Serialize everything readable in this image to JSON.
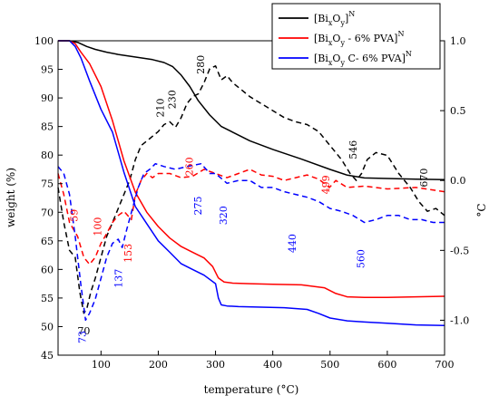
{
  "chart_data": {
    "type": "line",
    "xlabel": "temperature (°C)",
    "ylabel": "weight (%)",
    "y2label": "°C",
    "xlim": [
      25,
      700
    ],
    "ylim": [
      45,
      100
    ],
    "y2lim": [
      -1.25,
      1.0
    ],
    "xticks": [
      100,
      200,
      300,
      400,
      500,
      600,
      700
    ],
    "yticks": [
      45,
      50,
      55,
      60,
      65,
      70,
      75,
      80,
      85,
      90,
      95,
      100
    ],
    "y2ticks": [
      -1.0,
      -0.5,
      0.0,
      0.5,
      1.0
    ],
    "x_tick_labels": [
      "100",
      "200",
      "300",
      "400",
      "500",
      "600",
      "700"
    ],
    "y_tick_labels": [
      "45",
      "50",
      "55",
      "60",
      "65",
      "70",
      "75",
      "80",
      "85",
      "90",
      "95",
      "100"
    ],
    "y2_tick_labels": [
      "-1.0",
      "-0.5",
      "0.0",
      "0.5",
      "1.0"
    ],
    "legend_position": "top-right",
    "legend": [
      {
        "id": "s1",
        "base": "[Bi",
        "sub1": "x",
        "mid": "O",
        "sub2": "y",
        "suffix": "]",
        "sup": "N",
        "color": "#000000"
      },
      {
        "id": "s2",
        "base": "[Bi",
        "sub1": "x",
        "mid": "O",
        "sub2": "y",
        "suffix": " - 6% PVA]",
        "sup": "N",
        "color": "#ff0000"
      },
      {
        "id": "s3",
        "base": "[Bi",
        "sub1": "x",
        "mid": "O",
        "sub2": "y",
        "suffix": " C- 6% PVA]",
        "sup": "N",
        "color": "#0000ff"
      }
    ],
    "series": [
      {
        "id": "s1-tg",
        "axis": "left",
        "style": "solid",
        "color": "#000000",
        "x": [
          25,
          45,
          60,
          75,
          90,
          110,
          130,
          150,
          170,
          190,
          210,
          225,
          240,
          255,
          270,
          290,
          310,
          330,
          360,
          400,
          450,
          500,
          530,
          560,
          600,
          650,
          700
        ],
        "y": [
          100,
          100,
          99.7,
          99.0,
          98.5,
          98.0,
          97.6,
          97.3,
          97.0,
          96.7,
          96.2,
          95.5,
          94.0,
          92.0,
          89.5,
          87.0,
          85.0,
          84.0,
          82.5,
          81.0,
          79.3,
          77.5,
          76.5,
          76.0,
          75.9,
          75.8,
          75.7
        ]
      },
      {
        "id": "s1-dta",
        "axis": "right",
        "style": "dashed",
        "color": "#000000",
        "x": [
          25,
          35,
          45,
          55,
          63,
          70,
          75,
          82,
          90,
          100,
          110,
          120,
          130,
          140,
          150,
          160,
          170,
          185,
          200,
          210,
          220,
          230,
          240,
          250,
          260,
          270,
          280,
          290,
          300,
          310,
          320,
          330,
          345,
          360,
          380,
          400,
          420,
          440,
          460,
          480,
          500,
          520,
          535,
          546,
          555,
          565,
          580,
          600,
          620,
          640,
          655,
          670,
          685,
          700
        ],
        "y": [
          -0.05,
          -0.3,
          -0.5,
          -0.55,
          -0.8,
          -0.95,
          -0.92,
          -0.8,
          -0.7,
          -0.55,
          -0.4,
          -0.3,
          -0.2,
          -0.1,
          0.0,
          0.15,
          0.25,
          0.3,
          0.35,
          0.4,
          0.42,
          0.38,
          0.45,
          0.55,
          0.6,
          0.62,
          0.7,
          0.8,
          0.82,
          0.72,
          0.75,
          0.7,
          0.65,
          0.6,
          0.55,
          0.5,
          0.45,
          0.42,
          0.4,
          0.35,
          0.25,
          0.15,
          0.05,
          0.0,
          0.05,
          0.15,
          0.2,
          0.18,
          0.05,
          -0.05,
          -0.15,
          -0.22,
          -0.2,
          -0.25
        ]
      },
      {
        "id": "s2-tg",
        "axis": "left",
        "style": "solid",
        "color": "#ff0000",
        "x": [
          25,
          45,
          55,
          65,
          80,
          100,
          120,
          140,
          160,
          180,
          200,
          220,
          240,
          260,
          280,
          295,
          305,
          315,
          330,
          360,
          400,
          450,
          490,
          510,
          530,
          560,
          600,
          650,
          700
        ],
        "y": [
          100,
          100,
          99.5,
          98.0,
          96.0,
          92.0,
          86.0,
          79.0,
          73.5,
          70.0,
          67.5,
          65.5,
          64.0,
          63.0,
          62.0,
          60.5,
          58.5,
          57.8,
          57.6,
          57.5,
          57.4,
          57.3,
          56.8,
          55.8,
          55.2,
          55.1,
          55.1,
          55.2,
          55.3
        ]
      },
      {
        "id": "s2-dta",
        "axis": "right",
        "style": "dashed",
        "color": "#ff0000",
        "x": [
          25,
          35,
          45,
          59,
          70,
          80,
          90,
          100,
          110,
          120,
          130,
          140,
          153,
          160,
          170,
          180,
          190,
          200,
          220,
          240,
          260,
          280,
          300,
          320,
          340,
          360,
          380,
          400,
          420,
          440,
          460,
          480,
          499,
          510,
          530,
          560,
          600,
          650,
          700
        ],
        "y": [
          0.05,
          -0.1,
          -0.3,
          -0.4,
          -0.55,
          -0.6,
          -0.55,
          -0.45,
          -0.38,
          -0.3,
          -0.25,
          -0.22,
          -0.28,
          -0.1,
          0.0,
          0.05,
          0.02,
          0.05,
          0.05,
          0.02,
          0.03,
          0.08,
          0.05,
          0.02,
          0.05,
          0.08,
          0.04,
          0.03,
          0.0,
          0.02,
          0.04,
          0.01,
          -0.05,
          0.0,
          -0.05,
          -0.04,
          -0.06,
          -0.05,
          -0.08
        ]
      },
      {
        "id": "s3-tg",
        "axis": "left",
        "style": "solid",
        "color": "#0000ff",
        "x": [
          25,
          45,
          55,
          65,
          80,
          100,
          120,
          140,
          160,
          180,
          200,
          220,
          240,
          260,
          280,
          300,
          305,
          310,
          320,
          340,
          380,
          420,
          460,
          480,
          500,
          530,
          560,
          600,
          650,
          700
        ],
        "y": [
          100,
          100,
          99.0,
          97.0,
          93.0,
          88.0,
          84.0,
          77.0,
          71.0,
          68.0,
          65.0,
          63.0,
          61.0,
          60.0,
          59.0,
          57.5,
          55.0,
          53.8,
          53.6,
          53.5,
          53.4,
          53.3,
          53.0,
          52.3,
          51.5,
          51.0,
          50.8,
          50.6,
          50.3,
          50.2
        ]
      },
      {
        "id": "s3-dta",
        "axis": "right",
        "style": "dashed",
        "color": "#0000ff",
        "x": [
          25,
          35,
          45,
          55,
          65,
          73,
          80,
          90,
          100,
          110,
          120,
          130,
          137,
          145,
          155,
          165,
          175,
          185,
          195,
          210,
          230,
          250,
          275,
          290,
          300,
          320,
          340,
          360,
          380,
          400,
          420,
          440,
          460,
          480,
          500,
          520,
          540,
          560,
          580,
          600,
          620,
          640,
          660,
          680,
          700
        ],
        "y": [
          0.1,
          0.05,
          -0.1,
          -0.4,
          -0.75,
          -1.0,
          -0.95,
          -0.85,
          -0.7,
          -0.55,
          -0.45,
          -0.42,
          -0.48,
          -0.35,
          -0.2,
          -0.05,
          0.05,
          0.08,
          0.12,
          0.1,
          0.08,
          0.1,
          0.12,
          0.05,
          0.05,
          -0.02,
          0.0,
          0.0,
          -0.05,
          -0.05,
          -0.08,
          -0.1,
          -0.12,
          -0.15,
          -0.2,
          -0.22,
          -0.25,
          -0.3,
          -0.28,
          -0.25,
          -0.25,
          -0.28,
          -0.28,
          -0.3,
          -0.3
        ]
      }
    ],
    "annotations": [
      {
        "text": "70",
        "x": 70,
        "y2": -1.1,
        "color": "#000000",
        "rotate": 0
      },
      {
        "text": "210",
        "x": 210,
        "y2": 0.52,
        "color": "#000000",
        "rotate": -90
      },
      {
        "text": "230",
        "x": 230,
        "y2": 0.58,
        "color": "#000000",
        "rotate": -90
      },
      {
        "text": "280",
        "x": 280,
        "y2": 0.83,
        "color": "#000000",
        "rotate": -90
      },
      {
        "text": "546",
        "x": 546,
        "y2": 0.22,
        "color": "#000000",
        "rotate": -90
      },
      {
        "text": "670",
        "x": 670,
        "y2": 0.02,
        "color": "#000000",
        "rotate": -90
      },
      {
        "text": "59",
        "x": 59,
        "y2": -0.25,
        "color": "#ff0000",
        "rotate": -90
      },
      {
        "text": "100",
        "x": 100,
        "y2": -0.33,
        "color": "#ff0000",
        "rotate": -90
      },
      {
        "text": "153",
        "x": 153,
        "y2": -0.52,
        "color": "#ff0000",
        "rotate": -90
      },
      {
        "text": "260",
        "x": 260,
        "y2": 0.1,
        "color": "#ff0000",
        "rotate": -90
      },
      {
        "text": "499",
        "x": 499,
        "y2": -0.03,
        "color": "#ff0000",
        "rotate": -90
      },
      {
        "text": "73",
        "x": 73,
        "y2": -1.12,
        "color": "#0000ff",
        "rotate": -90
      },
      {
        "text": "137",
        "x": 137,
        "y2": -0.7,
        "color": "#0000ff",
        "rotate": -90
      },
      {
        "text": "275",
        "x": 275,
        "y2": -0.18,
        "color": "#0000ff",
        "rotate": -90
      },
      {
        "text": "320",
        "x": 320,
        "y2": -0.25,
        "color": "#0000ff",
        "rotate": -90
      },
      {
        "text": "440",
        "x": 440,
        "y2": -0.45,
        "color": "#0000ff",
        "rotate": -90
      },
      {
        "text": "560",
        "x": 560,
        "y2": -0.56,
        "color": "#0000ff",
        "rotate": -90
      }
    ]
  }
}
